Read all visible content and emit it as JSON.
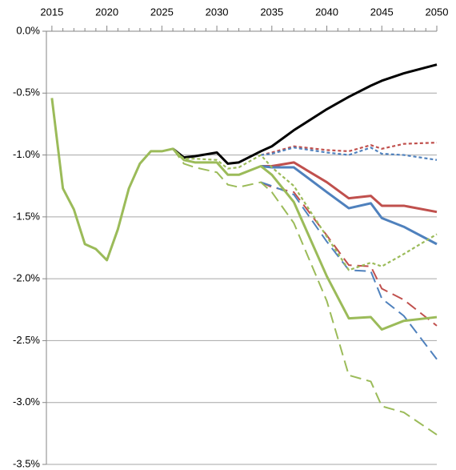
{
  "chart_data": {
    "type": "line",
    "x": [
      2015,
      2016,
      2017,
      2018,
      2019,
      2020,
      2021,
      2022,
      2023,
      2024,
      2025,
      2026,
      2027,
      2028,
      2030,
      2031,
      2032,
      2034,
      2035,
      2037,
      2040,
      2042,
      2044,
      2045,
      2047,
      2050
    ],
    "xlim": [
      2014.5,
      2050
    ],
    "xticks": [
      2015,
      2020,
      2025,
      2030,
      2035,
      2040,
      2045,
      2050
    ],
    "ylim": [
      -3.5,
      0
    ],
    "yticks": [
      {
        "value": 0,
        "label": "0.0%"
      },
      {
        "value": -0.5,
        "label": "-0.5%"
      },
      {
        "value": -1,
        "label": "-1.0%"
      },
      {
        "value": -1.5,
        "label": "-1.5%"
      },
      {
        "value": -2,
        "label": "-2.0%"
      },
      {
        "value": -2.5,
        "label": "-2.5%"
      },
      {
        "value": -3,
        "label": "-3.0%"
      },
      {
        "value": -3.5,
        "label": "-3.5%"
      }
    ],
    "grid": true,
    "series": [
      {
        "color": "#000000",
        "dash": "solid",
        "values": [
          null,
          null,
          null,
          null,
          null,
          null,
          null,
          null,
          null,
          null,
          null,
          -0.95,
          -1.02,
          -1.01,
          -0.98,
          -1.07,
          -1.06,
          -0.97,
          -0.93,
          -0.8,
          -0.63,
          -0.53,
          -0.44,
          -0.4,
          -0.34,
          -0.27
        ]
      },
      {
        "color": "#c0504d",
        "dash": "dotted",
        "values": [
          null,
          null,
          null,
          null,
          null,
          null,
          null,
          null,
          null,
          null,
          null,
          null,
          null,
          null,
          null,
          null,
          null,
          -1.0,
          -0.98,
          -0.93,
          -0.96,
          -0.97,
          -0.92,
          -0.95,
          -0.91,
          -0.9
        ]
      },
      {
        "color": "#4f81bd",
        "dash": "dotted",
        "values": [
          null,
          null,
          null,
          null,
          null,
          null,
          null,
          null,
          null,
          null,
          null,
          null,
          null,
          null,
          null,
          null,
          null,
          -1.0,
          -0.99,
          -0.94,
          -0.98,
          -1.0,
          -0.94,
          -0.99,
          -1.0,
          -1.04
        ]
      },
      {
        "color": "#c0504d",
        "dash": "solid",
        "values": [
          null,
          null,
          null,
          null,
          null,
          null,
          null,
          null,
          null,
          null,
          null,
          null,
          null,
          null,
          null,
          null,
          null,
          -1.09,
          -1.09,
          -1.06,
          -1.22,
          -1.35,
          -1.33,
          -1.41,
          -1.41,
          -1.46
        ]
      },
      {
        "color": "#4f81bd",
        "dash": "solid",
        "values": [
          null,
          null,
          null,
          null,
          null,
          null,
          null,
          null,
          null,
          null,
          null,
          null,
          null,
          null,
          null,
          null,
          null,
          -1.09,
          -1.1,
          -1.1,
          -1.3,
          -1.43,
          -1.39,
          -1.51,
          -1.58,
          -1.72
        ]
      },
      {
        "color": "#c0504d",
        "dash": "dashed",
        "values": [
          null,
          null,
          null,
          null,
          null,
          null,
          null,
          null,
          null,
          null,
          null,
          null,
          null,
          null,
          null,
          null,
          null,
          -1.22,
          -1.26,
          -1.3,
          -1.65,
          -1.89,
          -1.9,
          -2.08,
          -2.17,
          -2.38
        ]
      },
      {
        "color": "#4f81bd",
        "dash": "dashed",
        "values": [
          null,
          null,
          null,
          null,
          null,
          null,
          null,
          null,
          null,
          null,
          null,
          null,
          null,
          null,
          null,
          null,
          null,
          -1.22,
          -1.25,
          -1.32,
          -1.7,
          -1.93,
          -1.94,
          -2.16,
          -2.3,
          -2.65
        ]
      },
      {
        "color": "#9bbb59",
        "dash": "dotted",
        "values": [
          null,
          null,
          null,
          null,
          null,
          null,
          null,
          null,
          null,
          null,
          null,
          -0.95,
          -1.03,
          -1.03,
          -1.04,
          -1.11,
          -1.1,
          -1.0,
          -1.1,
          -1.25,
          -1.66,
          -1.93,
          -1.87,
          -1.9,
          -1.8,
          -1.64
        ]
      },
      {
        "color": "#9bbb59",
        "dash": "dashed",
        "values": [
          null,
          null,
          null,
          null,
          null,
          null,
          null,
          null,
          null,
          null,
          null,
          -0.95,
          -1.07,
          -1.1,
          -1.14,
          -1.24,
          -1.26,
          -1.22,
          -1.3,
          -1.55,
          -2.18,
          -2.78,
          -2.83,
          -3.03,
          -3.08,
          -3.26
        ]
      },
      {
        "color": "#9bbb59",
        "dash": "solid",
        "values": [
          -0.54,
          -1.27,
          -1.44,
          -1.72,
          -1.76,
          -1.85,
          -1.6,
          -1.27,
          -1.07,
          -0.97,
          -0.97,
          -0.95,
          -1.04,
          -1.06,
          -1.06,
          -1.16,
          -1.16,
          -1.09,
          -1.16,
          -1.38,
          -1.98,
          -2.32,
          -2.31,
          -2.41,
          -2.34,
          -2.31
        ]
      }
    ]
  }
}
